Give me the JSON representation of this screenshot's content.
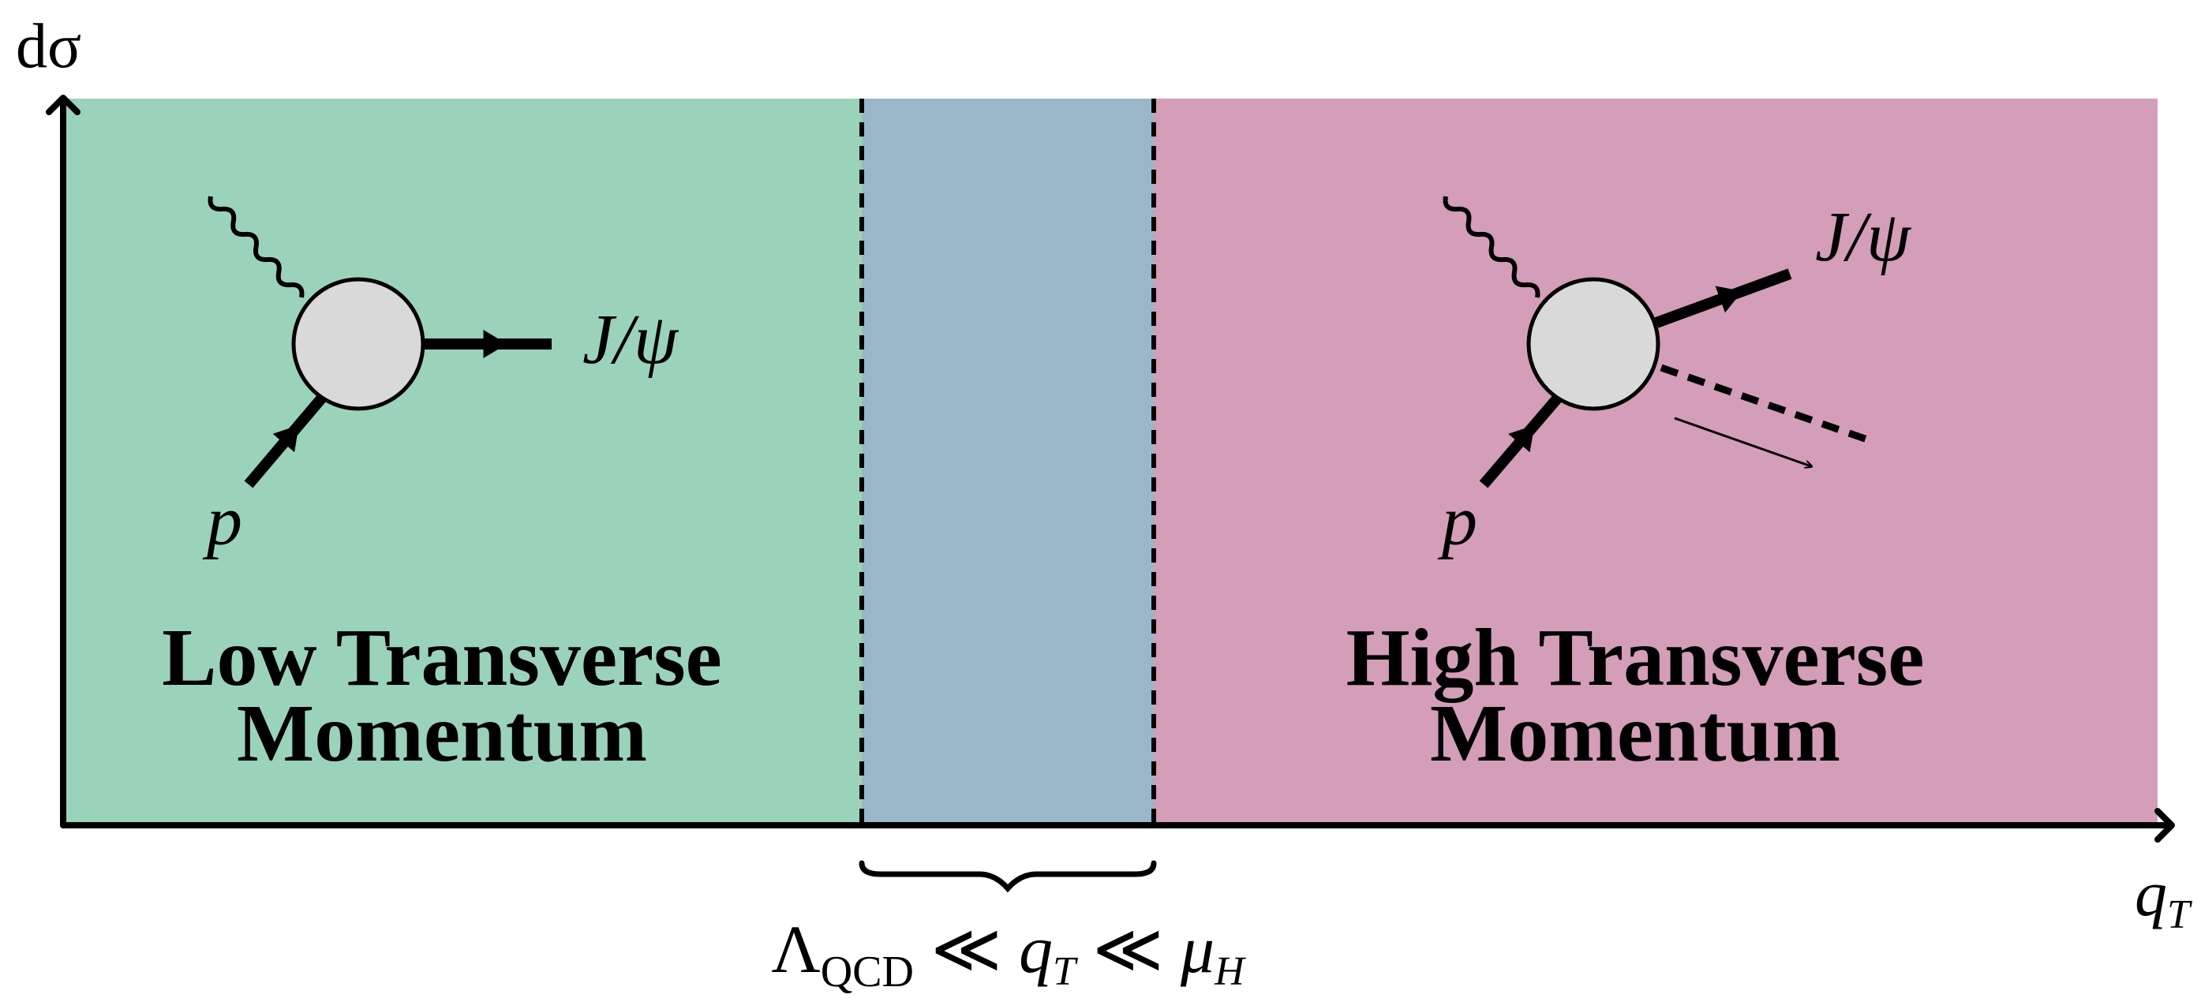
{
  "axes": {
    "y_label": "dσ",
    "x_label": {
      "base": "q",
      "sub": "T"
    }
  },
  "panels": [
    {
      "title": [
        "Low Transverse",
        "Momentum"
      ],
      "particles": {
        "out": "J/ψ",
        "in": "p"
      }
    },
    {
      "title": [
        "High Transverse",
        "Momentum"
      ],
      "particles": {
        "out": "J/ψ",
        "in": "p"
      }
    }
  ],
  "formula": [
    "Λ",
    "QCD",
    " ≪ ",
    "q",
    "T",
    " ≪ ",
    "μ",
    "H"
  ]
}
